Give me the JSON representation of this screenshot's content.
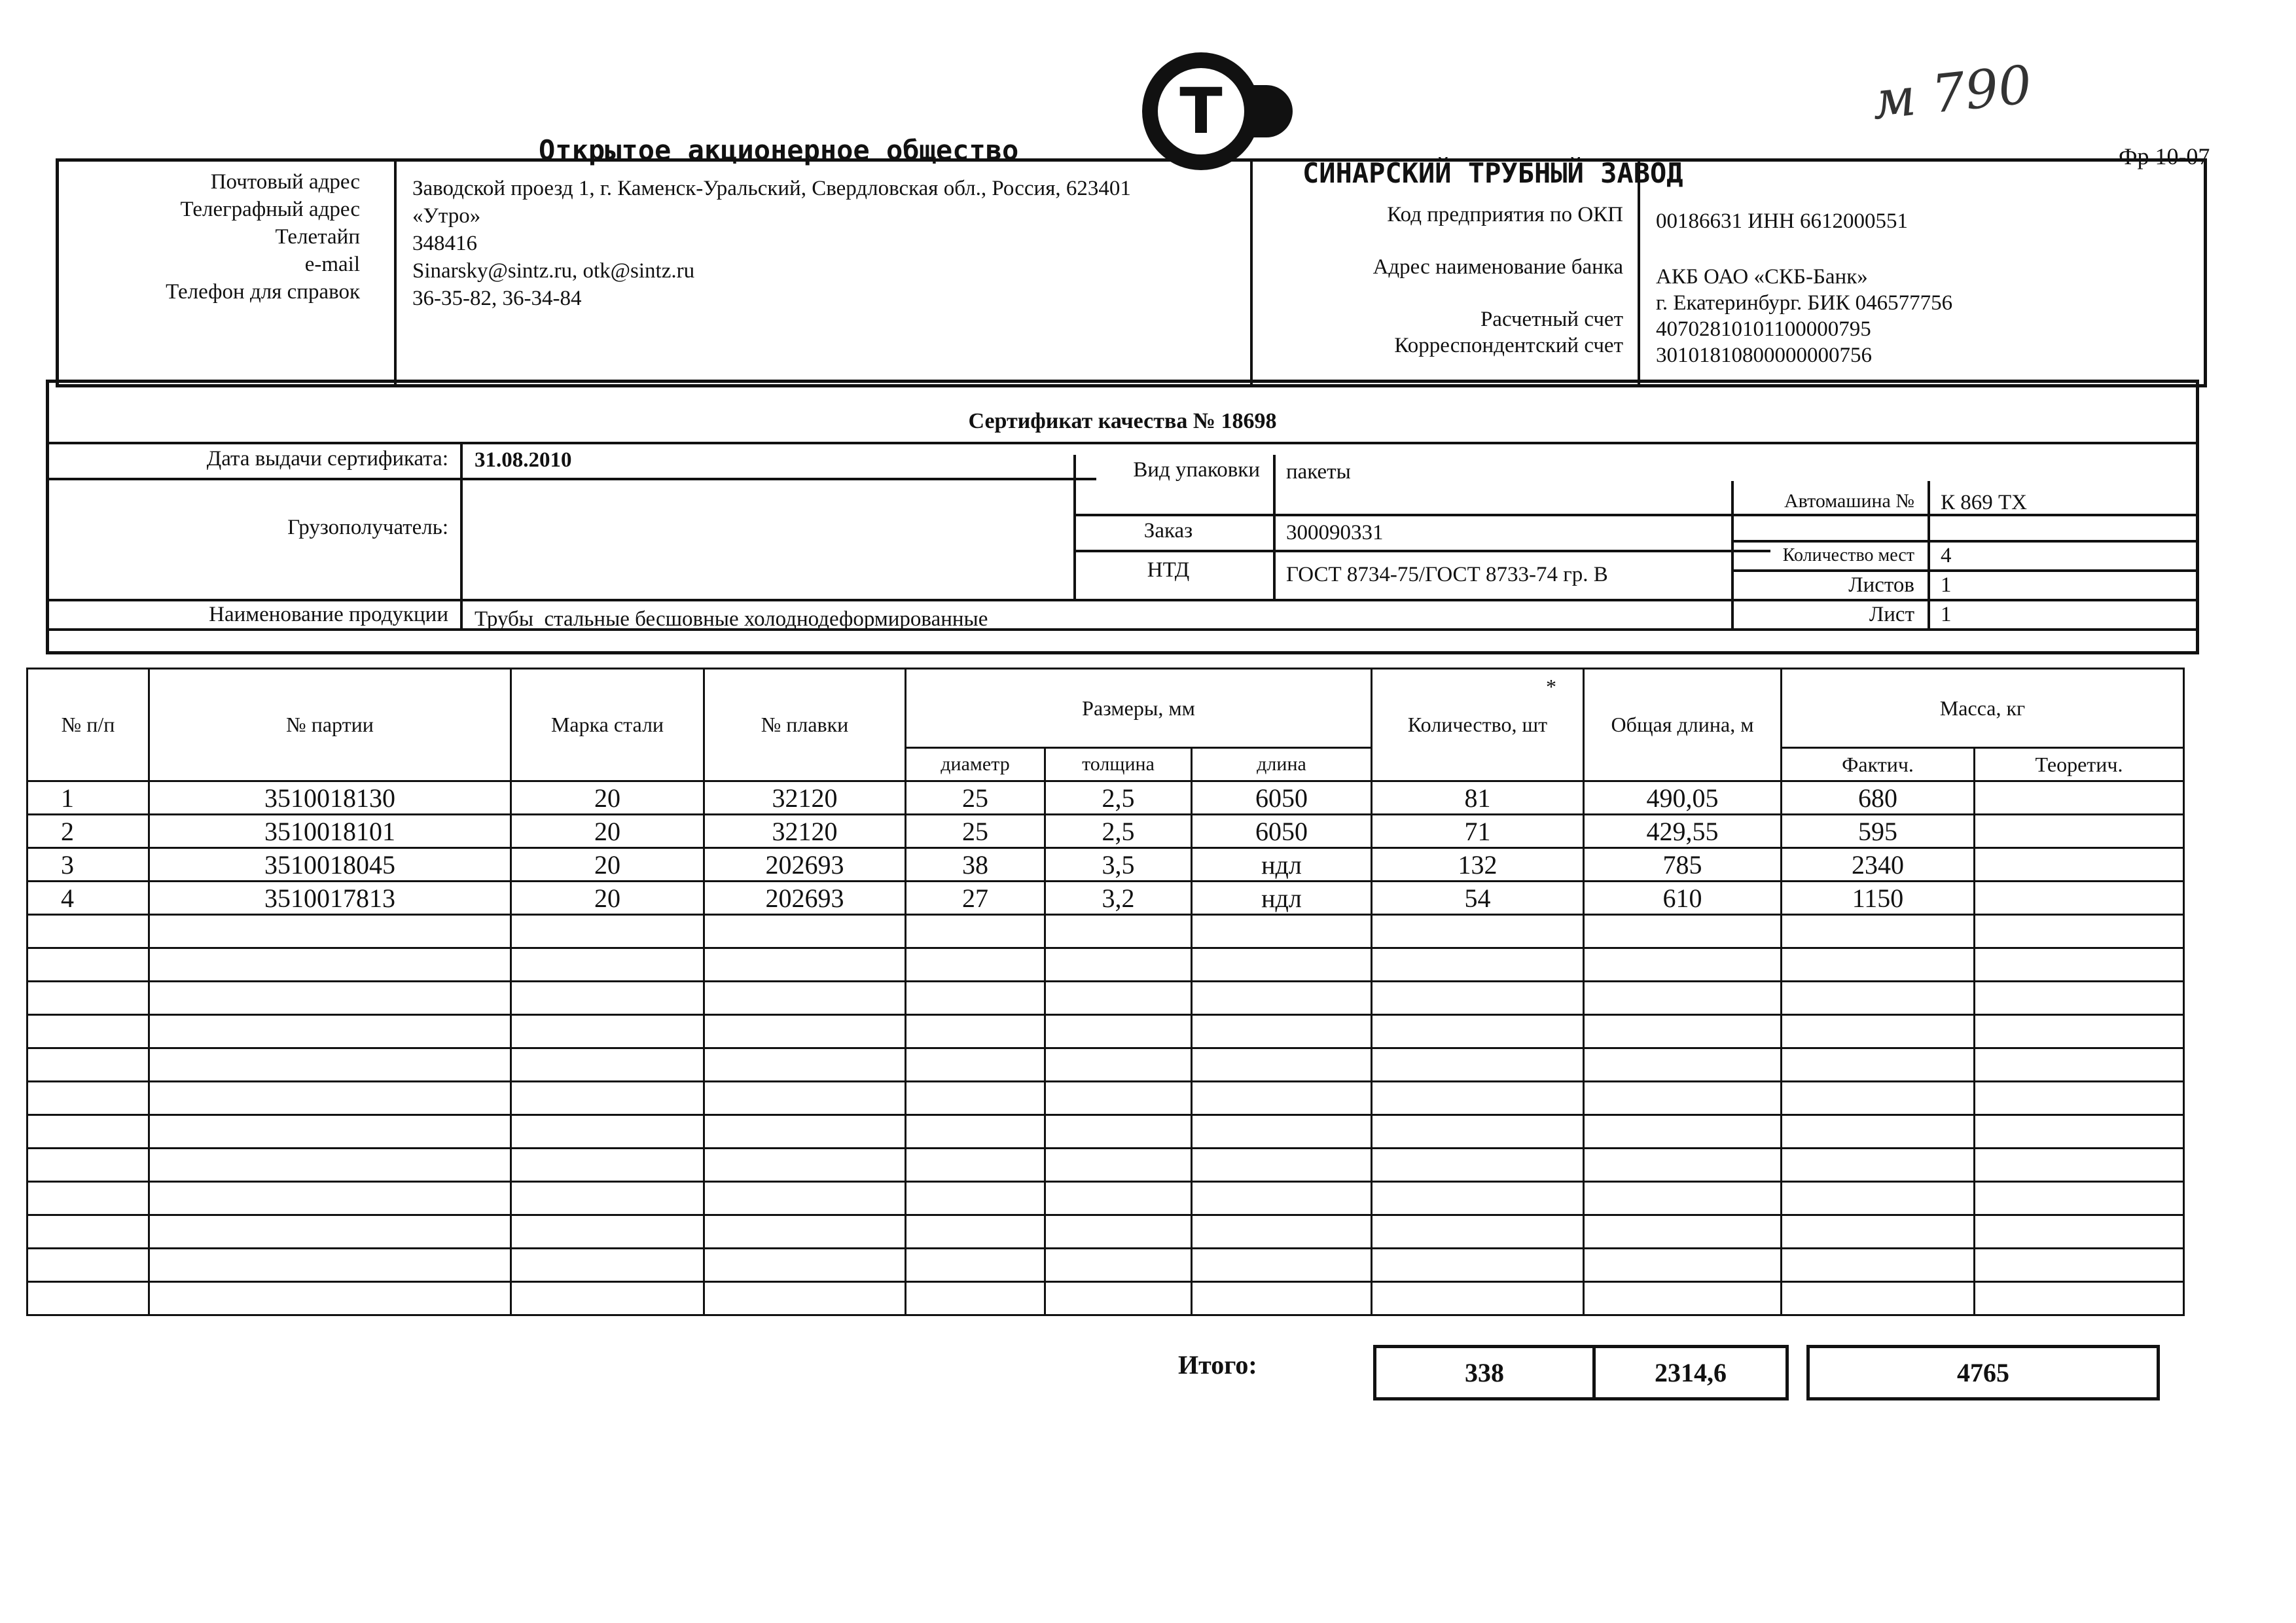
{
  "letterhead": {
    "org_type": "Открытое акционерное общество",
    "org_name": "СИНАРСКИЙ ТРУБНЫЙ ЗАВОД",
    "logo_letter": "Т",
    "handwritten_note": "м 790",
    "form_code": "Фр 10-07"
  },
  "contacts": {
    "labels": [
      "Почтовый адрес",
      "Телеграфный адрес",
      "Телетайп",
      "e-mail",
      "Телефон для справок"
    ],
    "values": [
      "Заводской проезд 1, г. Каменск-Уральский, Свердловская обл., Россия, 623401",
      "«Утро»",
      "348416",
      "Sinarsky@sintz.ru, otk@sintz.ru",
      "36-35-82, 36-34-84"
    ]
  },
  "bank": {
    "okp_label": "Код предприятия по ОКП",
    "okp_value": "00186631 ИНН 6612000551",
    "bank_label": "Адрес наименование банка",
    "bank_value_1": "АКБ ОАО «СКБ-Банк»",
    "bank_value_2": "г. Екатеринбург. БИК 046577756",
    "account_label": "Расчетный счет",
    "account_value": "40702810101100000795",
    "corr_label": "Корреспондентский счет",
    "corr_value": "30101810800000000756"
  },
  "certificate": {
    "title": "Сертификат качества № 18698",
    "issue_date_label": "Дата выдачи сертификата:",
    "issue_date": "31.08.2010",
    "packaging_label": "Вид упаковки",
    "packaging": "пакеты",
    "truck_label": "Автомашина №",
    "truck": "К 869 ТХ",
    "consignee_label": "Грузополучатель:",
    "order_label": "Заказ",
    "order": "300090331",
    "places_label": "Количество мест",
    "places": "4",
    "ntd_label": "НТД",
    "ntd": "ГОСТ 8734-75/ГОСТ 8733-74 гр. В",
    "sheets_label": "Листов",
    "sheets": "1",
    "sheet_label": "Лист",
    "sheet": "1",
    "product_label": "Наименование продукции",
    "product": "Трубы  стальные бесшовные холоднодеформированные"
  },
  "table": {
    "headers": {
      "num": "№ п/п",
      "batch": "№ партии",
      "steel": "Марка стали",
      "heat": "№ плавки",
      "sizes": "Размеры, мм",
      "diameter": "диаметр",
      "thickness": "толщина",
      "length": "длина",
      "quantity": "Количество, шт",
      "quantity_mark": "*",
      "total_length": "Общая длина, м",
      "mass": "Масса, кг",
      "mass_actual": "Фактич.",
      "mass_theoretical": "Теоретич."
    },
    "rows": [
      [
        "1",
        "3510018130",
        "20",
        "32120",
        "25",
        "2,5",
        "6050",
        "81",
        "490,05",
        "680",
        ""
      ],
      [
        "2",
        "3510018101",
        "20",
        "32120",
        "25",
        "2,5",
        "6050",
        "71",
        "429,55",
        "595",
        ""
      ],
      [
        "3",
        "3510018045",
        "20",
        "202693",
        "38",
        "3,5",
        "ндл",
        "132",
        "785",
        "2340",
        ""
      ],
      [
        "4",
        "3510017813",
        "20",
        "202693",
        "27",
        "3,2",
        "ндл",
        "54",
        "610",
        "1150",
        ""
      ]
    ],
    "total_label": "Итого:",
    "total_quantity": "338",
    "total_length": "2314,6",
    "total_mass": "4765"
  }
}
